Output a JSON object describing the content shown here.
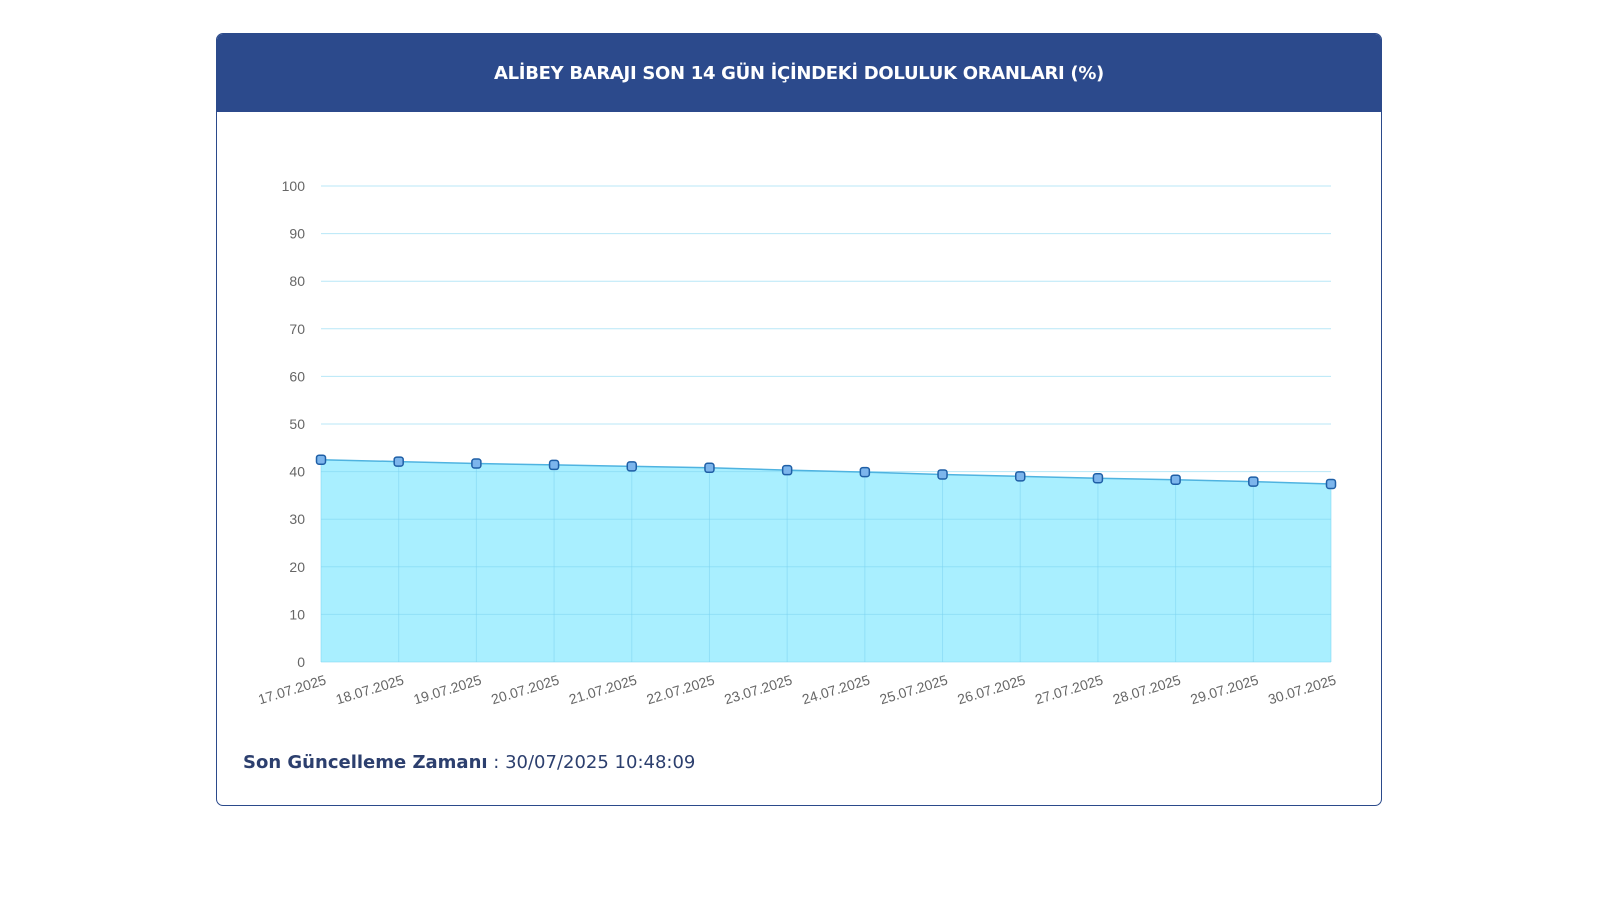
{
  "card": {
    "title": "ALİBEY BARAJI SON 14 GÜN İÇİNDEKİ DOLULUK ORANLARI (%)"
  },
  "footer": {
    "label": "Son Güncelleme Zamanı",
    "separator": " : ",
    "value": "30/07/2025 10:48:09"
  },
  "colors": {
    "header": "#2c4a8c",
    "area_fill": "#a9efff",
    "line": "#4fb3e0",
    "marker_fill": "#7cb5ec",
    "marker_stroke": "#1f5fa6"
  },
  "chart_data": {
    "type": "area",
    "title": "ALİBEY BARAJI SON 14 GÜN İÇİNDEKİ DOLULUK ORANLARI (%)",
    "xlabel": "",
    "ylabel": "",
    "ylim": [
      0,
      100
    ],
    "yticks": [
      0,
      10,
      20,
      30,
      40,
      50,
      60,
      70,
      80,
      90,
      100
    ],
    "categories": [
      "17.07.2025",
      "18.07.2025",
      "19.07.2025",
      "20.07.2025",
      "21.07.2025",
      "22.07.2025",
      "23.07.2025",
      "24.07.2025",
      "25.07.2025",
      "26.07.2025",
      "27.07.2025",
      "28.07.2025",
      "29.07.2025",
      "30.07.2025"
    ],
    "series": [
      {
        "values": [
          42.5,
          42.1,
          41.7,
          41.4,
          41.1,
          40.8,
          40.3,
          39.9,
          39.4,
          39.0,
          38.6,
          38.3,
          37.9,
          37.4
        ]
      }
    ],
    "grid": true,
    "legend": "none"
  }
}
